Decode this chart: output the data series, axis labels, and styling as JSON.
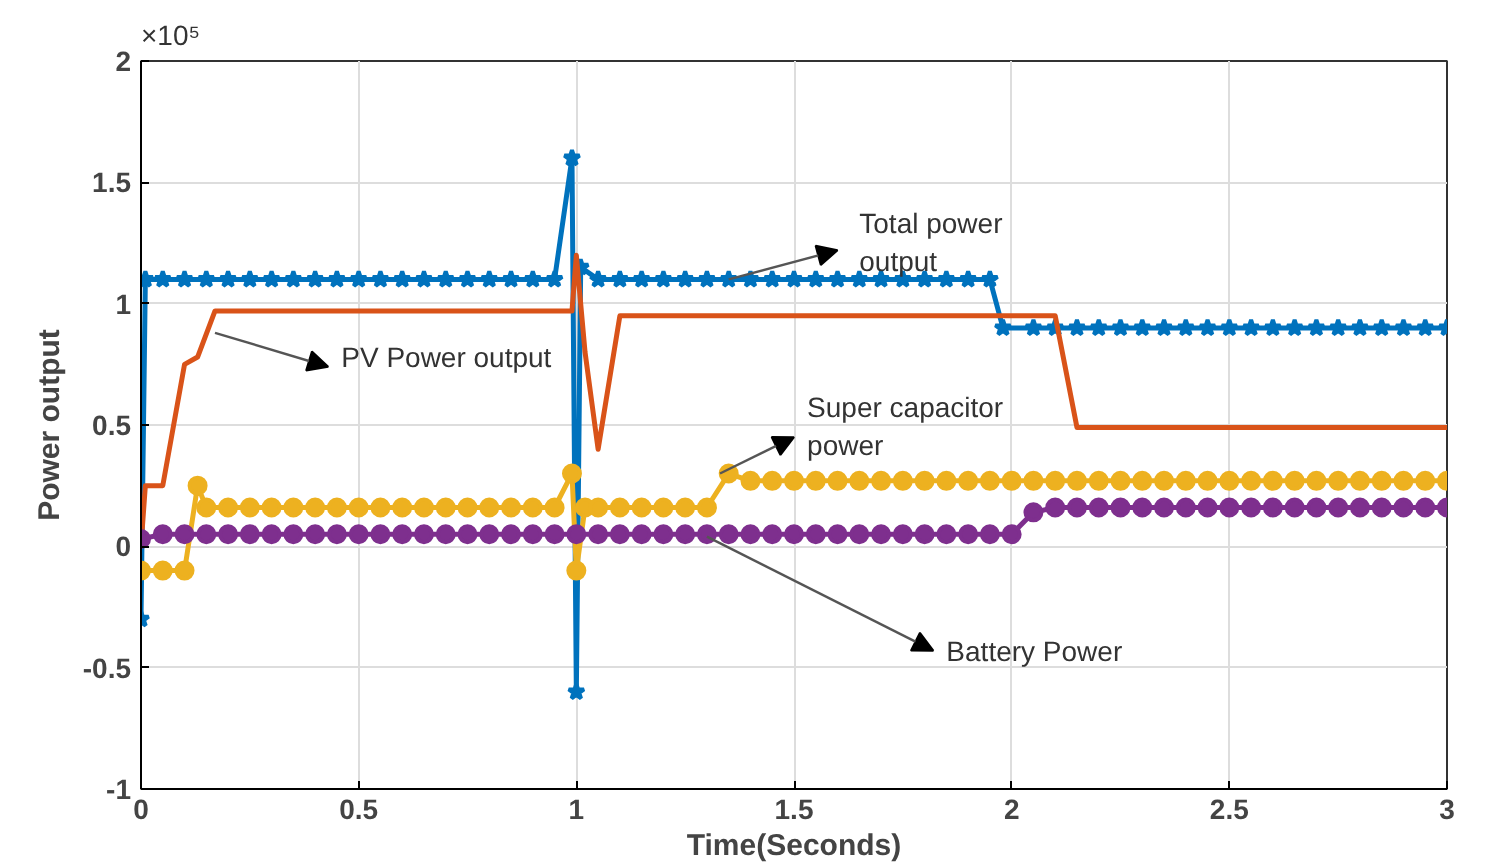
{
  "chart_data": {
    "type": "line",
    "xlabel": "Time(Seconds)",
    "ylabel": "Power output",
    "xlim": [
      0,
      3
    ],
    "xticks": [
      0,
      0.5,
      1,
      1.5,
      2,
      2.5,
      3
    ],
    "ylim": [
      -1,
      2
    ],
    "yticks": [
      -1,
      -0.5,
      0,
      0.5,
      1,
      1.5,
      2
    ],
    "grid": true,
    "line_style": "solid",
    "annotations": [
      "×10⁵",
      {
        "text": "Total power\noutput",
        "x": 1.35,
        "y": 1.1
      },
      {
        "text": "PV Power output",
        "x": 0.17,
        "y": 0.88
      },
      {
        "text": "Super capacitor\npower",
        "x": 1.33,
        "y": 0.3
      },
      {
        "text": "Battery Power",
        "x": 1.3,
        "y": 0.04
      }
    ],
    "series": [
      {
        "color": "#0072bd",
        "marker": "star",
        "x": [
          0,
          0.01,
          0.05,
          0.1,
          0.15,
          0.2,
          0.25,
          0.3,
          0.35,
          0.4,
          0.45,
          0.5,
          0.55,
          0.6,
          0.65,
          0.7,
          0.75,
          0.8,
          0.85,
          0.9,
          0.95,
          0.99,
          1.0,
          1.01,
          1.05,
          1.1,
          1.15,
          1.2,
          1.25,
          1.3,
          1.35,
          1.4,
          1.45,
          1.5,
          1.55,
          1.6,
          1.65,
          1.7,
          1.75,
          1.8,
          1.85,
          1.9,
          1.95,
          1.98,
          2.05,
          2.1,
          2.15,
          2.2,
          2.25,
          2.3,
          2.35,
          2.4,
          2.45,
          2.5,
          2.55,
          2.6,
          2.65,
          2.7,
          2.75,
          2.8,
          2.85,
          2.9,
          2.95,
          3.0
        ],
        "values": [
          -0.3,
          1.1,
          1.1,
          1.1,
          1.1,
          1.1,
          1.1,
          1.1,
          1.1,
          1.1,
          1.1,
          1.1,
          1.1,
          1.1,
          1.1,
          1.1,
          1.1,
          1.1,
          1.1,
          1.1,
          1.1,
          1.6,
          -0.6,
          1.15,
          1.1,
          1.1,
          1.1,
          1.1,
          1.1,
          1.1,
          1.1,
          1.1,
          1.1,
          1.1,
          1.1,
          1.1,
          1.1,
          1.1,
          1.1,
          1.1,
          1.1,
          1.1,
          1.1,
          0.9,
          0.9,
          0.9,
          0.9,
          0.9,
          0.9,
          0.9,
          0.9,
          0.9,
          0.9,
          0.9,
          0.9,
          0.9,
          0.9,
          0.9,
          0.9,
          0.9,
          0.9,
          0.9,
          0.9,
          0.9
        ]
      },
      {
        "color": "#d95319",
        "marker": "none",
        "x": [
          0,
          0.01,
          0.05,
          0.1,
          0.13,
          0.17,
          0.99,
          1.0,
          1.02,
          1.05,
          1.1,
          2.1,
          2.15,
          3.0
        ],
        "values": [
          0,
          0.25,
          0.25,
          0.75,
          0.78,
          0.97,
          0.97,
          1.2,
          0.8,
          0.4,
          0.95,
          0.95,
          0.49,
          0.49
        ]
      },
      {
        "color": "#edb120",
        "marker": "circle",
        "x": [
          0,
          0.05,
          0.1,
          0.13,
          0.15,
          0.2,
          0.25,
          0.3,
          0.35,
          0.4,
          0.45,
          0.5,
          0.55,
          0.6,
          0.65,
          0.7,
          0.75,
          0.8,
          0.85,
          0.9,
          0.95,
          0.99,
          1.0,
          1.02,
          1.05,
          1.1,
          1.15,
          1.2,
          1.25,
          1.3,
          1.35,
          1.4,
          1.45,
          1.5,
          1.55,
          1.6,
          1.65,
          1.7,
          1.75,
          1.8,
          1.85,
          1.9,
          1.95,
          2.0,
          2.05,
          2.1,
          2.15,
          2.2,
          2.25,
          2.3,
          2.35,
          2.4,
          2.45,
          2.5,
          2.55,
          2.6,
          2.65,
          2.7,
          2.75,
          2.8,
          2.85,
          2.9,
          2.95,
          3.0
        ],
        "values": [
          -0.1,
          -0.1,
          -0.1,
          0.25,
          0.16,
          0.16,
          0.16,
          0.16,
          0.16,
          0.16,
          0.16,
          0.16,
          0.16,
          0.16,
          0.16,
          0.16,
          0.16,
          0.16,
          0.16,
          0.16,
          0.16,
          0.3,
          -0.1,
          0.16,
          0.16,
          0.16,
          0.16,
          0.16,
          0.16,
          0.16,
          0.3,
          0.27,
          0.27,
          0.27,
          0.27,
          0.27,
          0.27,
          0.27,
          0.27,
          0.27,
          0.27,
          0.27,
          0.27,
          0.27,
          0.27,
          0.27,
          0.27,
          0.27,
          0.27,
          0.27,
          0.27,
          0.27,
          0.27,
          0.27,
          0.27,
          0.27,
          0.27,
          0.27,
          0.27,
          0.27,
          0.27,
          0.27,
          0.27,
          0.27
        ]
      },
      {
        "color": "#7e2f8e",
        "marker": "circle",
        "x": [
          0,
          0.05,
          0.1,
          0.15,
          0.2,
          0.25,
          0.3,
          0.35,
          0.4,
          0.45,
          0.5,
          0.55,
          0.6,
          0.65,
          0.7,
          0.75,
          0.8,
          0.85,
          0.9,
          0.95,
          1.0,
          1.05,
          1.1,
          1.15,
          1.2,
          1.25,
          1.3,
          1.35,
          1.4,
          1.45,
          1.5,
          1.55,
          1.6,
          1.65,
          1.7,
          1.75,
          1.8,
          1.85,
          1.9,
          1.95,
          2.0,
          2.05,
          2.1,
          2.15,
          2.2,
          2.25,
          2.3,
          2.35,
          2.4,
          2.45,
          2.5,
          2.55,
          2.6,
          2.65,
          2.7,
          2.75,
          2.8,
          2.85,
          2.9,
          2.95,
          3.0
        ],
        "values": [
          0.03,
          0.05,
          0.05,
          0.05,
          0.05,
          0.05,
          0.05,
          0.05,
          0.05,
          0.05,
          0.05,
          0.05,
          0.05,
          0.05,
          0.05,
          0.05,
          0.05,
          0.05,
          0.05,
          0.05,
          0.05,
          0.05,
          0.05,
          0.05,
          0.05,
          0.05,
          0.05,
          0.05,
          0.05,
          0.05,
          0.05,
          0.05,
          0.05,
          0.05,
          0.05,
          0.05,
          0.05,
          0.05,
          0.05,
          0.05,
          0.05,
          0.14,
          0.16,
          0.16,
          0.16,
          0.16,
          0.16,
          0.16,
          0.16,
          0.16,
          0.16,
          0.16,
          0.16,
          0.16,
          0.16,
          0.16,
          0.16,
          0.16,
          0.16,
          0.16,
          0.16
        ]
      }
    ]
  }
}
